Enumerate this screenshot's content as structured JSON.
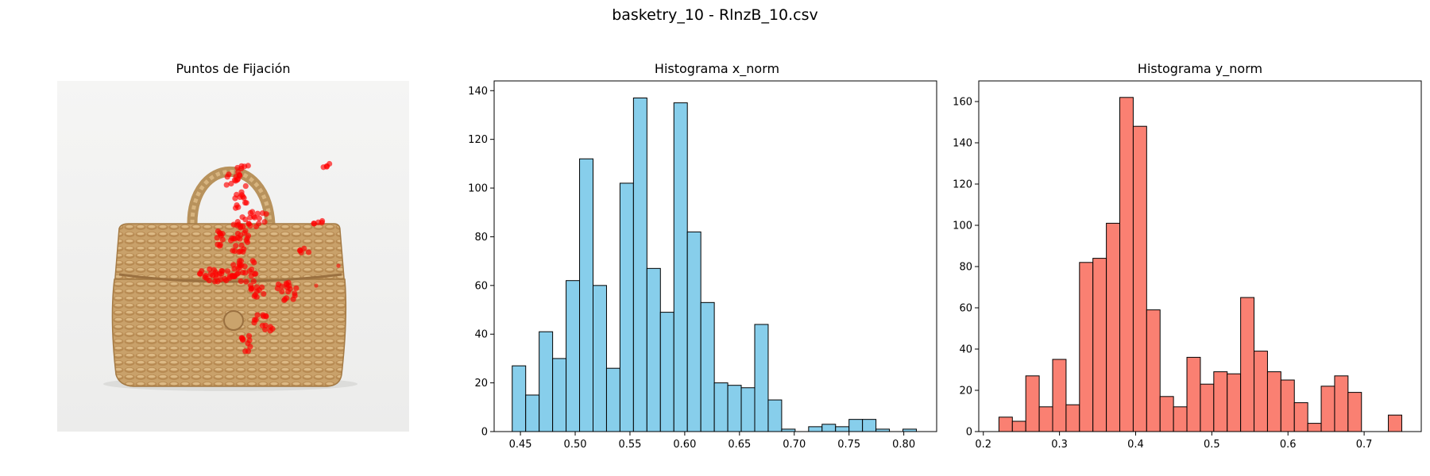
{
  "figure": {
    "title": "basketry_10 - RlnzB_10.csv"
  },
  "fixation_panel": {
    "title": "Puntos de Fijación",
    "image": "woven-basket-photo",
    "point_color": "#ff0000",
    "background_color": "#f4f4f3"
  },
  "chart_data": [
    {
      "type": "bar",
      "title": "Histograma x_norm",
      "xlabel": "",
      "ylabel": "",
      "color": "#87ceeb",
      "edge_color": "#000000",
      "xlim": [
        0.426,
        0.83
      ],
      "ylim": [
        0,
        144
      ],
      "xticks": [
        0.45,
        0.5,
        0.55,
        0.6,
        0.65,
        0.7,
        0.75,
        0.8
      ],
      "xtick_labels": [
        "0.45",
        "0.50",
        "0.55",
        "0.60",
        "0.65",
        "0.70",
        "0.75",
        "0.80"
      ],
      "yticks": [
        0,
        20,
        40,
        60,
        80,
        100,
        120,
        140
      ],
      "ytick_labels": [
        "0",
        "20",
        "40",
        "60",
        "80",
        "100",
        "120",
        "140"
      ],
      "bin_start": 0.4425,
      "bin_width": 0.0123,
      "values": [
        27,
        15,
        41,
        30,
        62,
        112,
        60,
        26,
        102,
        137,
        67,
        49,
        135,
        82,
        53,
        20,
        19,
        18,
        44,
        13,
        1,
        0,
        2,
        3,
        2,
        5,
        5,
        1,
        0,
        1
      ]
    },
    {
      "type": "bar",
      "title": "Histograma y_norm",
      "xlabel": "",
      "ylabel": "",
      "color": "#fa8072",
      "edge_color": "#000000",
      "xlim": [
        0.194,
        0.775
      ],
      "ylim": [
        0,
        170
      ],
      "xticks": [
        0.2,
        0.3,
        0.4,
        0.5,
        0.6,
        0.7
      ],
      "xtick_labels": [
        "0.2",
        "0.3",
        "0.4",
        "0.5",
        "0.6",
        "0.7"
      ],
      "yticks": [
        0,
        20,
        40,
        60,
        80,
        100,
        120,
        140,
        160
      ],
      "ytick_labels": [
        "0",
        "20",
        "40",
        "60",
        "80",
        "100",
        "120",
        "140",
        "160"
      ],
      "bin_start": 0.2205,
      "bin_width": 0.01763,
      "values": [
        7,
        5,
        27,
        12,
        35,
        13,
        82,
        84,
        101,
        162,
        148,
        59,
        17,
        12,
        36,
        23,
        29,
        28,
        65,
        39,
        29,
        25,
        14,
        4,
        22,
        27,
        19,
        0,
        0,
        8
      ]
    }
  ]
}
